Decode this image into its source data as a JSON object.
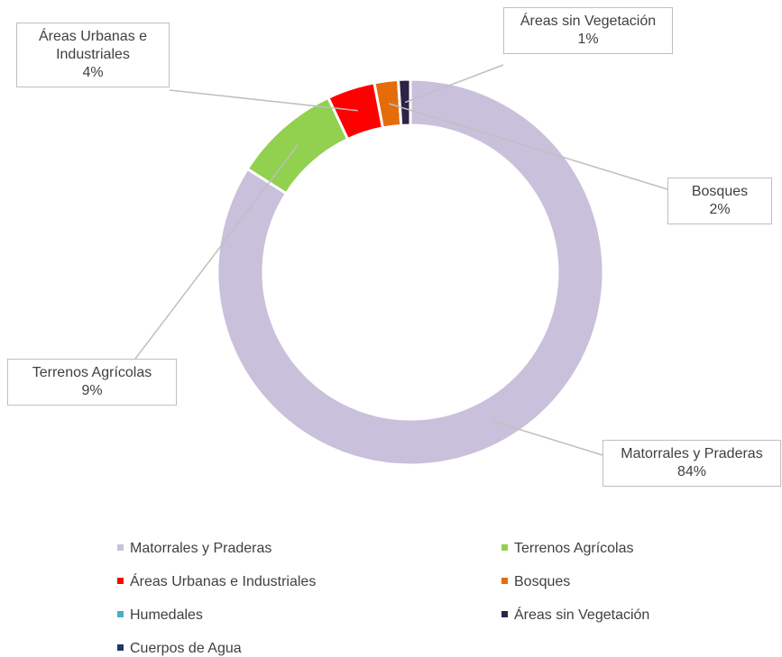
{
  "chart_data": {
    "type": "donut",
    "categories": [
      "Matorrales y Praderas",
      "Terrenos Agrícolas",
      "Áreas Urbanas e Industriales",
      "Bosques",
      "Humedales",
      "Áreas sin Vegetación",
      "Cuerpos de Agua"
    ],
    "values": [
      84,
      9,
      4,
      2,
      0,
      1,
      0
    ],
    "value_labels": [
      "84%",
      "9%",
      "4%",
      "2%",
      null,
      "1%",
      null
    ],
    "colors": [
      "#c9c0dc",
      "#92d050",
      "#ff0000",
      "#e46c0a",
      "#4bacc6",
      "#2e2247",
      "#1f3864"
    ],
    "legend": "bottom"
  }
}
